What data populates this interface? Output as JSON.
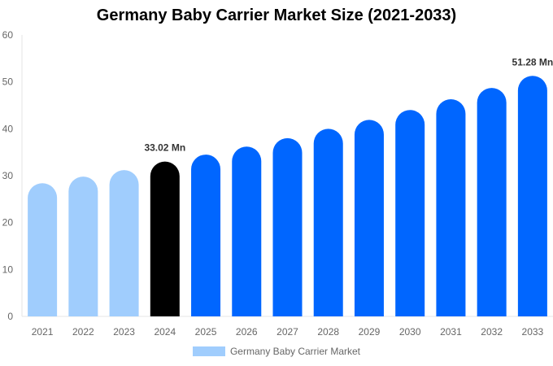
{
  "chart_data": {
    "type": "bar",
    "title": "Germany Baby Carrier Market Size (2021-2033)",
    "xlabel": "",
    "ylabel": "",
    "ylim": [
      0,
      60
    ],
    "yticks": [
      0,
      10,
      20,
      30,
      40,
      50,
      60
    ],
    "grid": false,
    "legend_placement": "bottom",
    "categories": [
      "2021",
      "2022",
      "2023",
      "2024",
      "2025",
      "2026",
      "2027",
      "2028",
      "2029",
      "2030",
      "2031",
      "2032",
      "2033"
    ],
    "series": [
      {
        "name": "Germany Baby Carrier Market",
        "values": [
          28.4,
          29.8,
          31.2,
          33.02,
          34.5,
          36.2,
          38.0,
          40.0,
          41.9,
          44.0,
          46.3,
          48.7,
          51.28
        ]
      }
    ],
    "bar_colors": [
      "#a0cdfd",
      "#a0cdfd",
      "#a0cdfd",
      "#000000",
      "#0066ff",
      "#0066ff",
      "#0066ff",
      "#0066ff",
      "#0066ff",
      "#0066ff",
      "#0066ff",
      "#0066ff",
      "#0066ff"
    ],
    "legend_color": "#a0cdfd",
    "data_labels": [
      {
        "category": "2024",
        "text": "33.02 Mn"
      },
      {
        "category": "2033",
        "text": "51.28 Mn"
      }
    ]
  }
}
